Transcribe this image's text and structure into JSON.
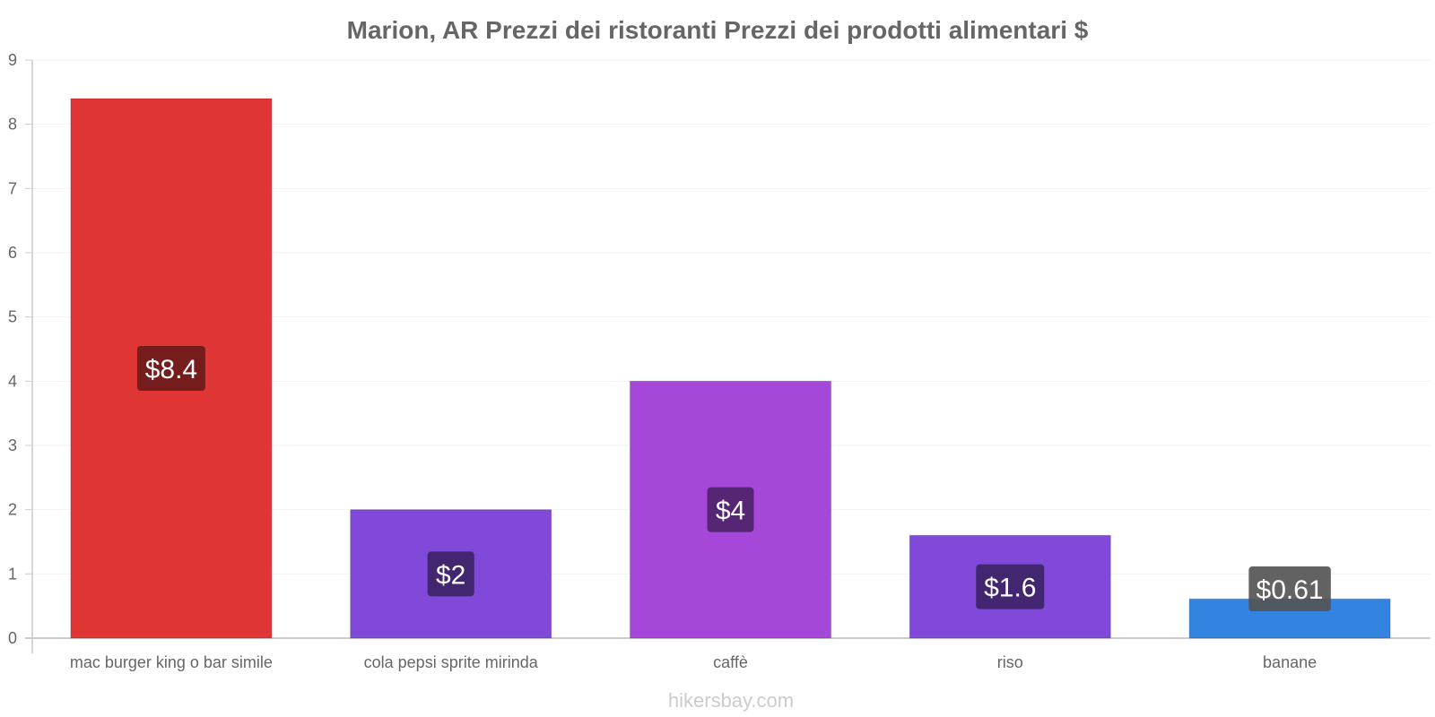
{
  "chart_data": {
    "type": "bar",
    "title": "Marion, AR Prezzi dei ristoranti Prezzi dei prodotti alimentari $",
    "xlabel": "",
    "ylabel": "",
    "ylim": [
      0,
      9
    ],
    "yticks": [
      "0",
      "1",
      "2",
      "3",
      "4",
      "5",
      "6",
      "7",
      "8",
      "9"
    ],
    "grid": true,
    "categories": [
      "mac burger king o bar simile",
      "cola pepsi sprite mirinda",
      "caffè",
      "riso",
      "banane"
    ],
    "values": [
      8.4,
      2,
      4,
      1.6,
      0.61
    ],
    "value_labels": [
      "$8.4",
      "$2",
      "$4",
      "$1.6",
      "$0.61"
    ],
    "bar_colors": [
      "#e03535",
      "#8049d9",
      "#a548d9",
      "#8049d9",
      "#3383e0"
    ],
    "label_box_colors": [
      "#6b1a1a",
      "#3d2466",
      "#4f246b",
      "#3d2466",
      "#555555"
    ]
  },
  "watermark": "hikersbay.com"
}
